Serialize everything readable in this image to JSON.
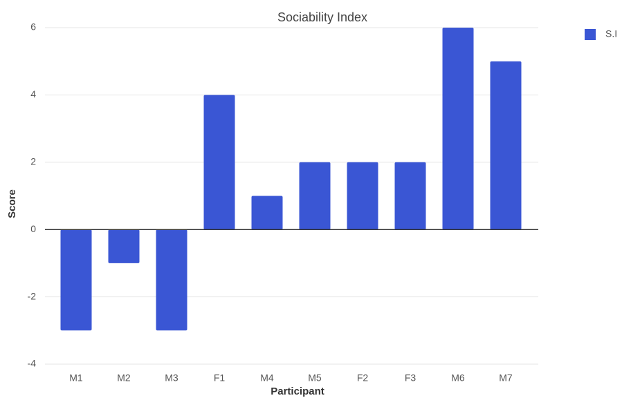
{
  "chart_data": {
    "type": "bar",
    "title": "Sociability Index",
    "x_label": "Participant",
    "y_label": "Score",
    "categories": [
      "M1",
      "M2",
      "M3",
      "F1",
      "M4",
      "M5",
      "F2",
      "F3",
      "M6",
      "M7"
    ],
    "series": [
      {
        "name": "S.I",
        "color": "#3a56d4",
        "values": [
          -3,
          -1,
          -3,
          4,
          1,
          2,
          2,
          2,
          6,
          5
        ]
      }
    ],
    "ylim": [
      -4,
      6
    ],
    "yticks": [
      -4,
      -2,
      0,
      2,
      4,
      6
    ],
    "grid": true,
    "legend": "top-right"
  }
}
